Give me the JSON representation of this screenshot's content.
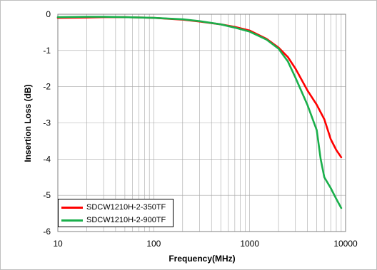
{
  "chart_data": {
    "type": "line",
    "title": "",
    "xlabel": "Frequency(MHz)",
    "ylabel": "Insertion Loss (dB)",
    "xscale": "log",
    "xlim": [
      10,
      10000
    ],
    "ylim": [
      -6,
      0
    ],
    "xticks": [
      10,
      100,
      1000,
      10000
    ],
    "xtick_labels": [
      "10",
      "100",
      "1000",
      "10000"
    ],
    "yticks": [
      0,
      -1,
      -2,
      -3,
      -4,
      -5,
      -6
    ],
    "ytick_labels": [
      "0",
      "-1",
      "-2",
      "-3",
      "-4",
      "-5",
      "-6"
    ],
    "grid": true,
    "legend_position": "bottom-left",
    "series": [
      {
        "name": "SDCW1210H-2-350TF",
        "color": "#ff0000",
        "x": [
          10,
          20,
          30,
          50,
          100,
          200,
          300,
          500,
          700,
          1000,
          1500,
          2000,
          2500,
          3000,
          4000,
          5000,
          6000,
          7000,
          8000,
          9000
        ],
        "y": [
          -0.1,
          -0.09,
          -0.08,
          -0.08,
          -0.1,
          -0.15,
          -0.2,
          -0.28,
          -0.35,
          -0.45,
          -0.68,
          -0.92,
          -1.18,
          -1.5,
          -2.1,
          -2.5,
          -2.9,
          -3.45,
          -3.75,
          -3.95
        ]
      },
      {
        "name": "SDCW1210H-2-900TF",
        "color": "#1aaf4b",
        "x": [
          10,
          20,
          30,
          50,
          100,
          200,
          300,
          500,
          700,
          1000,
          1500,
          2000,
          2500,
          3000,
          4000,
          5000,
          5500,
          6000,
          7000,
          8000,
          9000
        ],
        "y": [
          -0.08,
          -0.07,
          -0.07,
          -0.08,
          -0.1,
          -0.14,
          -0.19,
          -0.28,
          -0.37,
          -0.48,
          -0.7,
          -0.95,
          -1.3,
          -1.75,
          -2.5,
          -3.2,
          -4.0,
          -4.5,
          -4.8,
          -5.1,
          -5.35
        ]
      }
    ]
  }
}
